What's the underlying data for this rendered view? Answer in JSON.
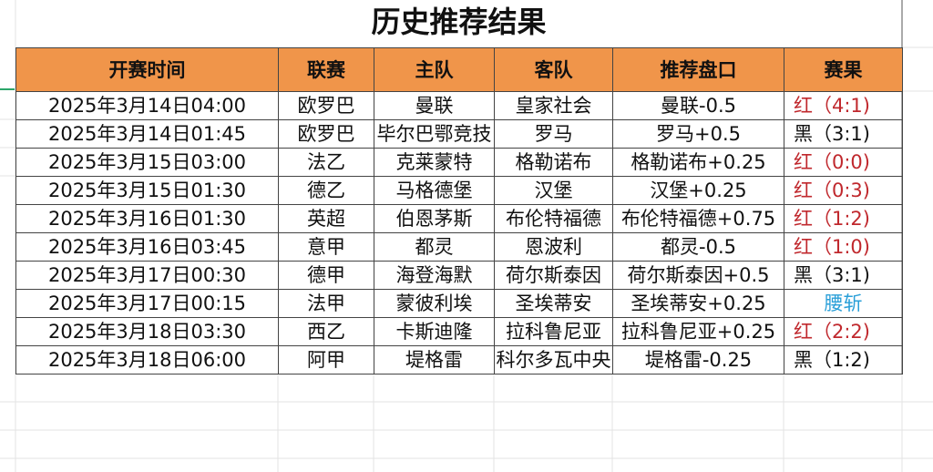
{
  "title": "历史推荐结果",
  "headers": [
    "开赛时间",
    "联赛",
    "主队",
    "客队",
    "推荐盘口",
    "赛果"
  ],
  "colors": {
    "header_bg": "#F0954A",
    "red": "#C0282D",
    "black": "#111111",
    "blue": "#2A9FD8"
  },
  "rows": [
    {
      "time": "2025年3月14日04:00",
      "league": "欧罗巴",
      "home": "曼联",
      "away": "皇家社会",
      "pick": "曼联-0.5",
      "result": "红（4:1)",
      "type": "red"
    },
    {
      "time": "2025年3月14日01:45",
      "league": "欧罗巴",
      "home": "毕尔巴鄂竞技",
      "away": "罗马",
      "pick": "罗马+0.5",
      "result": "黑（3:1)",
      "type": "black"
    },
    {
      "time": "2025年3月15日03:00",
      "league": "法乙",
      "home": "克莱蒙特",
      "away": "格勒诺布",
      "pick": "格勒诺布+0.25",
      "result": "红（0:0)",
      "type": "red"
    },
    {
      "time": "2025年3月15日01:30",
      "league": "德乙",
      "home": "马格德堡",
      "away": "汉堡",
      "pick": "汉堡+0.25",
      "result": "红（0:3)",
      "type": "red"
    },
    {
      "time": "2025年3月16日01:30",
      "league": "英超",
      "home": "伯恩茅斯",
      "away": "布伦特福德",
      "pick": "布伦特福德+0.75",
      "result": "红（1:2)",
      "type": "red"
    },
    {
      "time": "2025年3月16日03:45",
      "league": "意甲",
      "home": "都灵",
      "away": "恩波利",
      "pick": "都灵-0.5",
      "result": "红（1:0)",
      "type": "red"
    },
    {
      "time": "2025年3月17日00:30",
      "league": "德甲",
      "home": "海登海默",
      "away": "荷尔斯泰因",
      "pick": "荷尔斯泰因+0.5",
      "result": "黑（3:1)",
      "type": "black"
    },
    {
      "time": "2025年3月17日00:15",
      "league": "法甲",
      "home": "蒙彼利埃",
      "away": "圣埃蒂安",
      "pick": "圣埃蒂安+0.25",
      "result": "腰斩",
      "type": "blue"
    },
    {
      "time": "2025年3月18日03:30",
      "league": "西乙",
      "home": "卡斯迪隆",
      "away": "拉科鲁尼亚",
      "pick": "拉科鲁尼亚+0.25",
      "result": "红（2:2)",
      "type": "red"
    },
    {
      "time": "2025年3月18日06:00",
      "league": "阿甲",
      "home": "堤格雷",
      "away": "科尔多瓦中央",
      "pick": "堤格雷-0.25",
      "result": "黑（1:2)",
      "type": "black"
    }
  ]
}
